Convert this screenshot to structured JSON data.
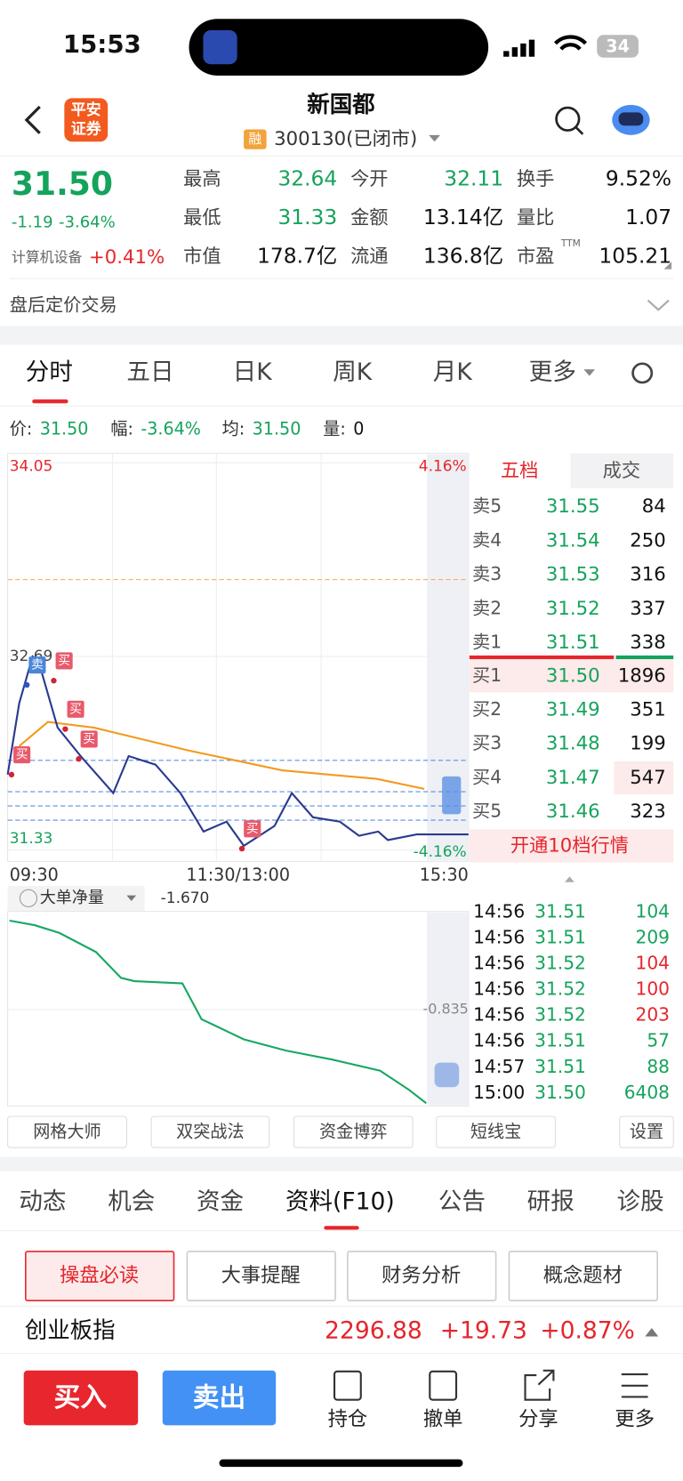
{
  "status_bar": {
    "time": "15:53",
    "battery": "34"
  },
  "header": {
    "title": "新国都",
    "logo": [
      "平安",
      "证券"
    ],
    "badge": "融",
    "code": "300130(已闭市)"
  },
  "quote": {
    "price": "31.50",
    "change": "-1.19",
    "change_pct": "-3.64%",
    "sector": "计算机设备",
    "sector_change": "+0.41%",
    "pe_sup": "TTM",
    "stats": [
      {
        "label": "最高",
        "value": "32.64",
        "color": "#15a35c"
      },
      {
        "label": "今开",
        "value": "32.11",
        "color": "#15a35c"
      },
      {
        "label": "换手",
        "value": "9.52%",
        "color": "#111"
      },
      {
        "label": "最低",
        "value": "31.33",
        "color": "#15a35c"
      },
      {
        "label": "金额",
        "value": "13.14亿",
        "color": "#111"
      },
      {
        "label": "量比",
        "value": "1.07",
        "color": "#111"
      },
      {
        "label": "市值",
        "value": "178.7亿",
        "color": "#111"
      },
      {
        "label": "流通",
        "value": "136.8亿",
        "color": "#111"
      },
      {
        "label": "市盈",
        "value": "105.21",
        "color": "#111"
      }
    ]
  },
  "after_hours": "盘后定价交易",
  "tabs": [
    "分时",
    "五日",
    "日K",
    "周K",
    "月K",
    "更多"
  ],
  "info_line": [
    {
      "label": "价:",
      "value": "31.50"
    },
    {
      "label": "幅:",
      "value": "-3.64%"
    },
    {
      "label": "均:",
      "value": "31.50"
    },
    {
      "label": "量:",
      "value": "0"
    }
  ],
  "intraday": {
    "ylim": [
      31.33,
      34.05
    ],
    "yticks": [
      34.05,
      32.69,
      31.33
    ],
    "pct_labels": [
      "4.16%",
      "-4.16%"
    ],
    "xlim": [
      0,
      240
    ],
    "categories": [
      "09:30",
      "11:30/13:00",
      "15:30"
    ],
    "price": {
      "color": "#2b3a8f",
      "x": [
        0,
        6,
        13,
        16,
        26,
        38,
        55,
        63,
        77,
        90,
        102,
        114,
        123,
        139,
        148,
        159,
        173,
        183,
        193,
        198,
        213,
        240
      ],
      "values": [
        31.86,
        32.36,
        32.69,
        32.66,
        32.19,
        31.99,
        31.73,
        31.99,
        31.93,
        31.73,
        31.46,
        31.53,
        31.36,
        31.5,
        31.73,
        31.56,
        31.53,
        31.43,
        31.46,
        31.4,
        31.44,
        31.44
      ]
    },
    "average": {
      "color": "#f39a1e",
      "x": [
        6,
        21,
        45,
        94,
        143,
        192,
        217
      ],
      "values": [
        32.06,
        32.23,
        32.19,
        32.03,
        31.89,
        31.83,
        31.76
      ]
    },
    "levels": [
      {
        "value": 33.23,
        "color": "#f6b35a"
      },
      {
        "value": 31.96,
        "color": "#5b8fe0"
      },
      {
        "value": 31.74,
        "color": "#5b8fe0"
      },
      {
        "value": 31.64,
        "color": "#5b8fe0"
      },
      {
        "value": 31.54,
        "color": "#5b8fe0"
      }
    ],
    "signals": [
      {
        "label": "卖",
        "x": 10,
        "y": 32.49,
        "color": "#4a86d8"
      },
      {
        "label": "买",
        "x": 2,
        "y": 31.86,
        "color": "#e85a6b"
      },
      {
        "label": "买",
        "x": 24,
        "y": 32.52,
        "color": "#e85a6b"
      },
      {
        "label": "买",
        "x": 30,
        "y": 32.18,
        "color": "#e85a6b"
      },
      {
        "label": "买",
        "x": 37,
        "y": 31.97,
        "color": "#e85a6b"
      },
      {
        "label": "买",
        "x": 122,
        "y": 31.34,
        "color": "#e85a6b"
      }
    ]
  },
  "flow": {
    "label": "大单净量",
    "value": "-1.670",
    "ylim": [
      -1.67,
      0
    ],
    "yticks": [
      -0.835
    ],
    "xlim": [
      0,
      240
    ],
    "color": "#16a862",
    "x": [
      0,
      13,
      26,
      45,
      58,
      65,
      90,
      100,
      122,
      144,
      168,
      193,
      208,
      217
    ],
    "values": [
      -0.04,
      -0.08,
      -0.15,
      -0.32,
      -0.55,
      -0.58,
      -0.6,
      -0.92,
      -1.1,
      -1.2,
      -1.28,
      -1.38,
      -1.55,
      -1.67
    ]
  },
  "order_tabs": [
    "五档",
    "成交"
  ],
  "asks": [
    {
      "label": "卖5",
      "price": "31.55",
      "volume": "84"
    },
    {
      "label": "卖4",
      "price": "31.54",
      "volume": "250"
    },
    {
      "label": "卖3",
      "price": "31.53",
      "volume": "316"
    },
    {
      "label": "卖2",
      "price": "31.52",
      "volume": "337"
    },
    {
      "label": "卖1",
      "price": "31.51",
      "volume": "338"
    }
  ],
  "bids": [
    {
      "label": "买1",
      "price": "31.50",
      "volume": "1896"
    },
    {
      "label": "买2",
      "price": "31.49",
      "volume": "351"
    },
    {
      "label": "买3",
      "price": "31.48",
      "volume": "199"
    },
    {
      "label": "买4",
      "price": "31.47",
      "volume": "547"
    },
    {
      "label": "买5",
      "price": "31.46",
      "volume": "323"
    }
  ],
  "upgrade": "开通10档行情",
  "trades": [
    {
      "time": "14:56",
      "price": "31.51",
      "volume": "104",
      "color": "#15a35c"
    },
    {
      "time": "14:56",
      "price": "31.51",
      "volume": "209",
      "color": "#15a35c"
    },
    {
      "time": "14:56",
      "price": "31.52",
      "volume": "104",
      "color": "#e5262c"
    },
    {
      "time": "14:56",
      "price": "31.52",
      "volume": "100",
      "color": "#e5262c"
    },
    {
      "time": "14:56",
      "price": "31.52",
      "volume": "203",
      "color": "#e5262c"
    },
    {
      "time": "14:56",
      "price": "31.51",
      "volume": "57",
      "color": "#15a35c"
    },
    {
      "time": "14:57",
      "price": "31.51",
      "volume": "88",
      "color": "#15a35c"
    },
    {
      "time": "15:00",
      "price": "31.50",
      "volume": "6408",
      "color": "#15a35c"
    }
  ],
  "tools": [
    "网格大师",
    "双突战法",
    "资金博弈",
    "短线宝",
    "设置"
  ],
  "info_tabs": [
    "动态",
    "机会",
    "资金",
    "资料(F10)",
    "公告",
    "研报",
    "诊股"
  ],
  "sub_tabs": [
    "操盘必读",
    "大事提醒",
    "财务分析",
    "概念题材"
  ],
  "index": {
    "name": "创业板指",
    "value": "2296.88",
    "change": "+19.73",
    "change_pct": "+0.87%"
  },
  "actions": {
    "buy": "买入",
    "sell": "卖出",
    "items": [
      "持仓",
      "撤单",
      "分享",
      "更多"
    ]
  }
}
